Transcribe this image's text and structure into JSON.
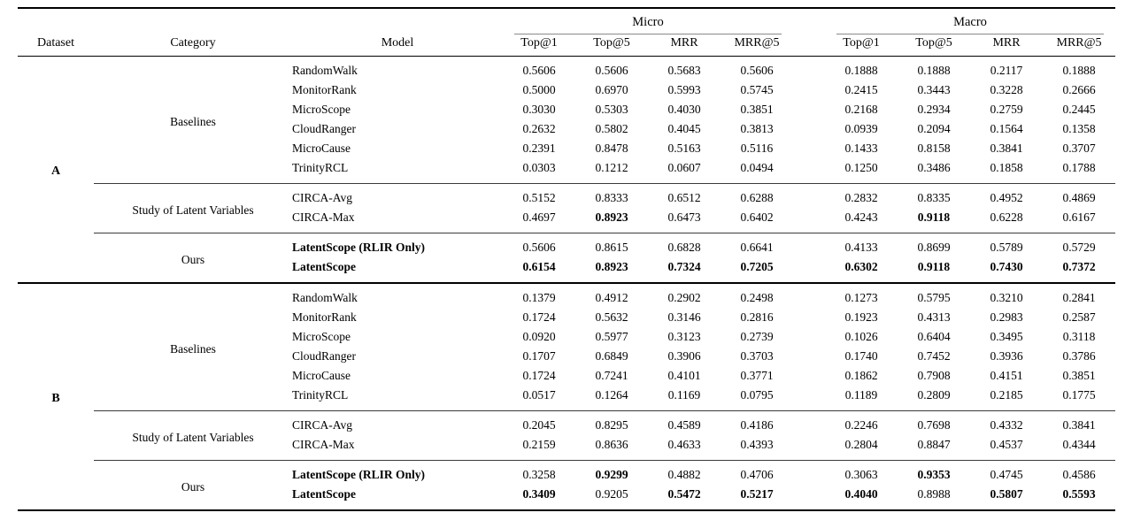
{
  "page": {
    "background": "#ffffff",
    "text_color": "#000000",
    "thick_rule_color": "#000000",
    "cmidrule_color": "#8a8a8a"
  },
  "table": {
    "header": {
      "dataset": "Dataset",
      "category": "Category",
      "model": "Model",
      "groups": [
        {
          "label": "Micro",
          "metrics": [
            "Top@1",
            "Top@5",
            "MRR",
            "MRR@5"
          ]
        },
        {
          "label": "Macro",
          "metrics": [
            "Top@1",
            "Top@5",
            "MRR",
            "MRR@5"
          ]
        }
      ]
    },
    "datasets": [
      {
        "name": "A",
        "categories": [
          {
            "label": "Baselines",
            "rows": [
              {
                "model": "RandomWalk",
                "bold_model": false,
                "values": [
                  "0.5606",
                  "0.5606",
                  "0.5683",
                  "0.5606",
                  "0.1888",
                  "0.1888",
                  "0.2117",
                  "0.1888"
                ],
                "bold": [
                  0,
                  0,
                  0,
                  0,
                  0,
                  0,
                  0,
                  0
                ]
              },
              {
                "model": "MonitorRank",
                "bold_model": false,
                "values": [
                  "0.5000",
                  "0.6970",
                  "0.5993",
                  "0.5745",
                  "0.2415",
                  "0.3443",
                  "0.3228",
                  "0.2666"
                ],
                "bold": [
                  0,
                  0,
                  0,
                  0,
                  0,
                  0,
                  0,
                  0
                ]
              },
              {
                "model": "MicroScope",
                "bold_model": false,
                "values": [
                  "0.3030",
                  "0.5303",
                  "0.4030",
                  "0.3851",
                  "0.2168",
                  "0.2934",
                  "0.2759",
                  "0.2445"
                ],
                "bold": [
                  0,
                  0,
                  0,
                  0,
                  0,
                  0,
                  0,
                  0
                ]
              },
              {
                "model": "CloudRanger",
                "bold_model": false,
                "values": [
                  "0.2632",
                  "0.5802",
                  "0.4045",
                  "0.3813",
                  "0.0939",
                  "0.2094",
                  "0.1564",
                  "0.1358"
                ],
                "bold": [
                  0,
                  0,
                  0,
                  0,
                  0,
                  0,
                  0,
                  0
                ]
              },
              {
                "model": "MicroCause",
                "bold_model": false,
                "values": [
                  "0.2391",
                  "0.8478",
                  "0.5163",
                  "0.5116",
                  "0.1433",
                  "0.8158",
                  "0.3841",
                  "0.3707"
                ],
                "bold": [
                  0,
                  0,
                  0,
                  0,
                  0,
                  0,
                  0,
                  0
                ]
              },
              {
                "model": "TrinityRCL",
                "bold_model": false,
                "values": [
                  "0.0303",
                  "0.1212",
                  "0.0607",
                  "0.0494",
                  "0.1250",
                  "0.3486",
                  "0.1858",
                  "0.1788"
                ],
                "bold": [
                  0,
                  0,
                  0,
                  0,
                  0,
                  0,
                  0,
                  0
                ]
              }
            ]
          },
          {
            "label": "Study of Latent Variables",
            "rows": [
              {
                "model": "CIRCA-Avg",
                "bold_model": false,
                "values": [
                  "0.5152",
                  "0.8333",
                  "0.6512",
                  "0.6288",
                  "0.2832",
                  "0.8335",
                  "0.4952",
                  "0.4869"
                ],
                "bold": [
                  0,
                  0,
                  0,
                  0,
                  0,
                  0,
                  0,
                  0
                ]
              },
              {
                "model": "CIRCA-Max",
                "bold_model": false,
                "values": [
                  "0.4697",
                  "0.8923",
                  "0.6473",
                  "0.6402",
                  "0.4243",
                  "0.9118",
                  "0.6228",
                  "0.6167"
                ],
                "bold": [
                  0,
                  1,
                  0,
                  0,
                  0,
                  1,
                  0,
                  0
                ]
              }
            ]
          },
          {
            "label": "Ours",
            "rows": [
              {
                "model": "LatentScope (RLIR Only)",
                "bold_model": true,
                "values": [
                  "0.5606",
                  "0.8615",
                  "0.6828",
                  "0.6641",
                  "0.4133",
                  "0.8699",
                  "0.5789",
                  "0.5729"
                ],
                "bold": [
                  0,
                  0,
                  0,
                  0,
                  0,
                  0,
                  0,
                  0
                ]
              },
              {
                "model": "LatentScope",
                "bold_model": true,
                "values": [
                  "0.6154",
                  "0.8923",
                  "0.7324",
                  "0.7205",
                  "0.6302",
                  "0.9118",
                  "0.7430",
                  "0.7372"
                ],
                "bold": [
                  1,
                  1,
                  1,
                  1,
                  1,
                  1,
                  1,
                  1
                ]
              }
            ]
          }
        ]
      },
      {
        "name": "B",
        "categories": [
          {
            "label": "Baselines",
            "rows": [
              {
                "model": "RandomWalk",
                "bold_model": false,
                "values": [
                  "0.1379",
                  "0.4912",
                  "0.2902",
                  "0.2498",
                  "0.1273",
                  "0.5795",
                  "0.3210",
                  "0.2841"
                ],
                "bold": [
                  0,
                  0,
                  0,
                  0,
                  0,
                  0,
                  0,
                  0
                ]
              },
              {
                "model": "MonitorRank",
                "bold_model": false,
                "values": [
                  "0.1724",
                  "0.5632",
                  "0.3146",
                  "0.2816",
                  "0.1923",
                  "0.4313",
                  "0.2983",
                  "0.2587"
                ],
                "bold": [
                  0,
                  0,
                  0,
                  0,
                  0,
                  0,
                  0,
                  0
                ]
              },
              {
                "model": "MicroScope",
                "bold_model": false,
                "values": [
                  "0.0920",
                  "0.5977",
                  "0.3123",
                  "0.2739",
                  "0.1026",
                  "0.6404",
                  "0.3495",
                  "0.3118"
                ],
                "bold": [
                  0,
                  0,
                  0,
                  0,
                  0,
                  0,
                  0,
                  0
                ]
              },
              {
                "model": "CloudRanger",
                "bold_model": false,
                "values": [
                  "0.1707",
                  "0.6849",
                  "0.3906",
                  "0.3703",
                  "0.1740",
                  "0.7452",
                  "0.3936",
                  "0.3786"
                ],
                "bold": [
                  0,
                  0,
                  0,
                  0,
                  0,
                  0,
                  0,
                  0
                ]
              },
              {
                "model": "MicroCause",
                "bold_model": false,
                "values": [
                  "0.1724",
                  "0.7241",
                  "0.4101",
                  "0.3771",
                  "0.1862",
                  "0.7908",
                  "0.4151",
                  "0.3851"
                ],
                "bold": [
                  0,
                  0,
                  0,
                  0,
                  0,
                  0,
                  0,
                  0
                ]
              },
              {
                "model": "TrinityRCL",
                "bold_model": false,
                "values": [
                  "0.0517",
                  "0.1264",
                  "0.1169",
                  "0.0795",
                  "0.1189",
                  "0.2809",
                  "0.2185",
                  "0.1775"
                ],
                "bold": [
                  0,
                  0,
                  0,
                  0,
                  0,
                  0,
                  0,
                  0
                ]
              }
            ]
          },
          {
            "label": "Study of Latent Variables",
            "rows": [
              {
                "model": "CIRCA-Avg",
                "bold_model": false,
                "values": [
                  "0.2045",
                  "0.8295",
                  "0.4589",
                  "0.4186",
                  "0.2246",
                  "0.7698",
                  "0.4332",
                  "0.3841"
                ],
                "bold": [
                  0,
                  0,
                  0,
                  0,
                  0,
                  0,
                  0,
                  0
                ]
              },
              {
                "model": "CIRCA-Max",
                "bold_model": false,
                "values": [
                  "0.2159",
                  "0.8636",
                  "0.4633",
                  "0.4393",
                  "0.2804",
                  "0.8847",
                  "0.4537",
                  "0.4344"
                ],
                "bold": [
                  0,
                  0,
                  0,
                  0,
                  0,
                  0,
                  0,
                  0
                ]
              }
            ]
          },
          {
            "label": "Ours",
            "rows": [
              {
                "model": "LatentScope (RLIR Only)",
                "bold_model": true,
                "values": [
                  "0.3258",
                  "0.9299",
                  "0.4882",
                  "0.4706",
                  "0.3063",
                  "0.9353",
                  "0.4745",
                  "0.4586"
                ],
                "bold": [
                  0,
                  1,
                  0,
                  0,
                  0,
                  1,
                  0,
                  0
                ]
              },
              {
                "model": "LatentScope",
                "bold_model": true,
                "values": [
                  "0.3409",
                  "0.9205",
                  "0.5472",
                  "0.5217",
                  "0.4040",
                  "0.8988",
                  "0.5807",
                  "0.5593"
                ],
                "bold": [
                  1,
                  0,
                  1,
                  1,
                  1,
                  0,
                  1,
                  1
                ]
              }
            ]
          }
        ]
      }
    ]
  }
}
